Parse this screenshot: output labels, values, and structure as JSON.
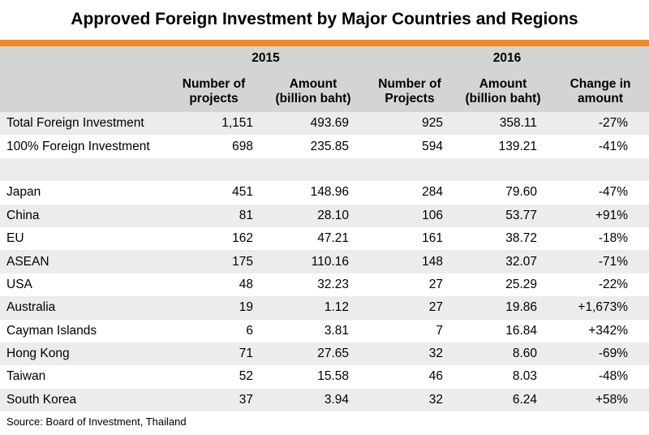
{
  "title": "Approved Foreign Investment by Major Countries and Regions",
  "years": [
    "2015",
    "2016"
  ],
  "headers": [
    "Number of projects",
    "Amount (billion baht)",
    "Number of Projects",
    "Amount (billion baht)",
    "Change in amount"
  ],
  "header_lines": [
    [
      "Number of",
      "projects"
    ],
    [
      "Amount",
      "(billion baht)"
    ],
    [
      "Number of",
      "Projects"
    ],
    [
      "Amount",
      "(billion baht)"
    ],
    [
      "Change in",
      "amount"
    ]
  ],
  "rows": [
    {
      "name": "Total Foreign Investment",
      "values": [
        "1,151",
        "493.69",
        "925",
        "358.11",
        "-27%"
      ]
    },
    {
      "name": "100% Foreign Investment",
      "values": [
        "698",
        "235.85",
        "594",
        "139.21",
        "-41%"
      ]
    },
    {
      "name": "",
      "values": [
        "",
        "",
        "",
        "",
        ""
      ]
    },
    {
      "name": "Japan",
      "values": [
        "451",
        "148.96",
        "284",
        "79.60",
        "-47%"
      ]
    },
    {
      "name": "China",
      "values": [
        "81",
        "28.10",
        "106",
        "53.77",
        "+91%"
      ]
    },
    {
      "name": "EU",
      "values": [
        "162",
        "47.21",
        "161",
        "38.72",
        "-18%"
      ]
    },
    {
      "name": "ASEAN",
      "values": [
        "175",
        "110.16",
        "148",
        "32.07",
        "-71%"
      ]
    },
    {
      "name": "USA",
      "values": [
        "48",
        "32.23",
        "27",
        "25.29",
        "-22%"
      ]
    },
    {
      "name": "Australia",
      "values": [
        "19",
        "1.12",
        "27",
        "19.86",
        "+1,673%"
      ]
    },
    {
      "name": "Cayman Islands",
      "values": [
        "6",
        "3.81",
        "7",
        "16.84",
        "+342%"
      ]
    },
    {
      "name": "Hong Kong",
      "values": [
        "71",
        "27.65",
        "32",
        "8.60",
        "-69%"
      ]
    },
    {
      "name": "Taiwan",
      "values": [
        "52",
        "15.58",
        "46",
        "8.03",
        "-48%"
      ]
    },
    {
      "name": "South Korea",
      "values": [
        "37",
        "3.94",
        "32",
        "6.24",
        "+58%"
      ]
    }
  ],
  "source": "Source: Board of Investment, Thailand",
  "colors": {
    "accent": "#f08a24",
    "header_bg": "#d4d4d4",
    "stripe_bg": "#ececec"
  }
}
